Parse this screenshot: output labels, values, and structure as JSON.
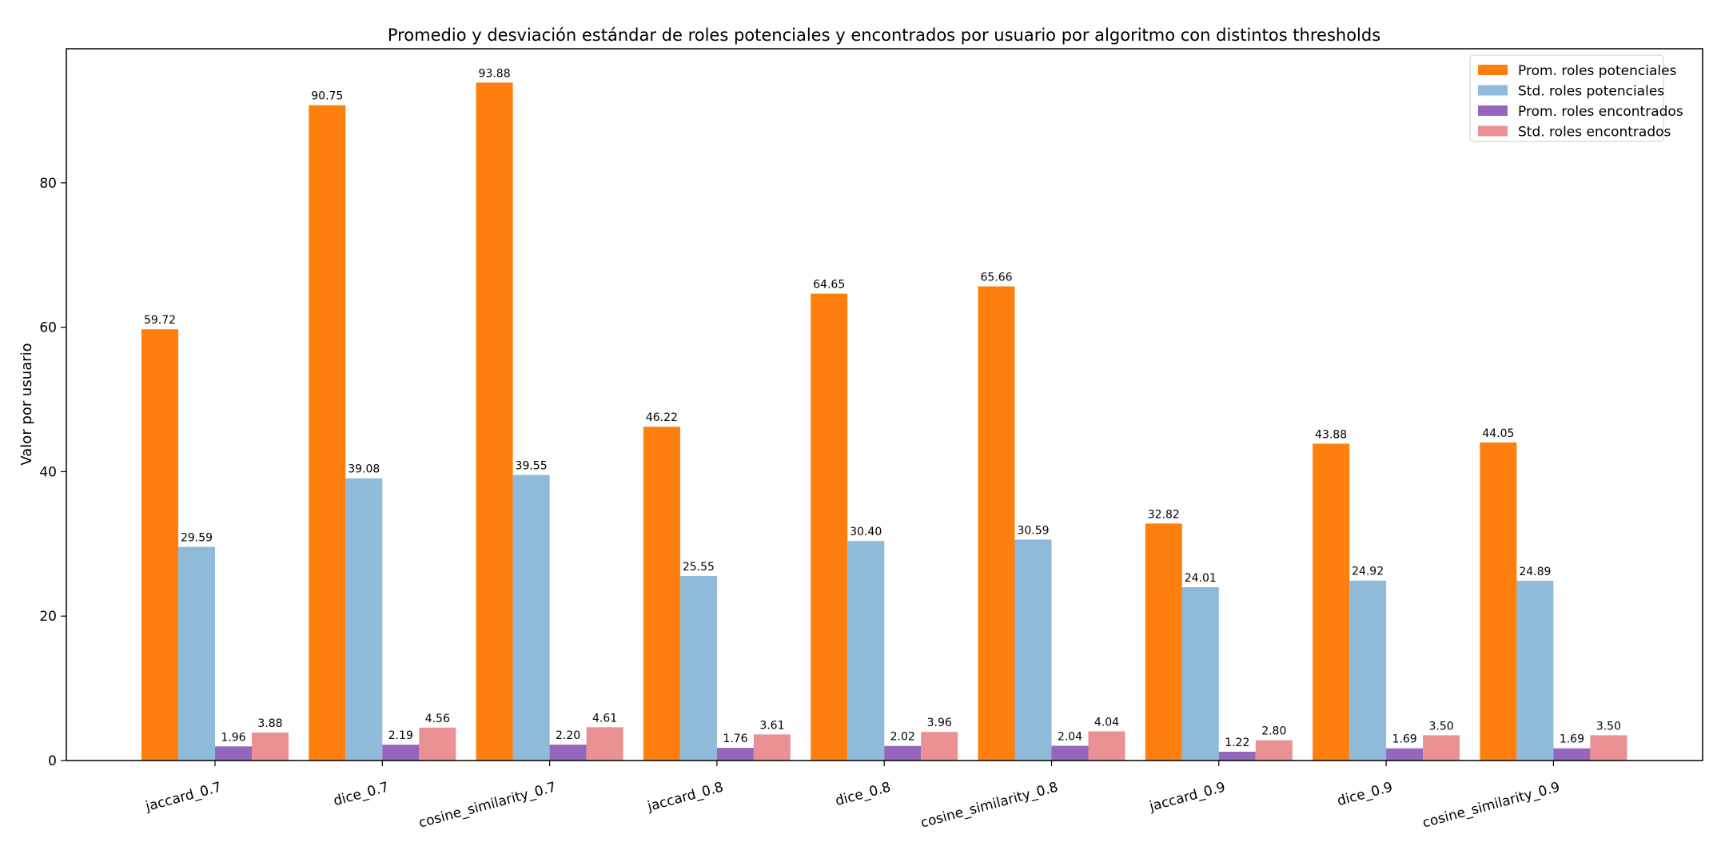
{
  "chart_data": {
    "type": "bar",
    "title": "Promedio y desviación estándar de roles potenciales y encontrados por usuario por algoritmo con distintos thresholds",
    "xlabel": "",
    "ylabel": "Valor por usuario",
    "ylim": [
      0,
      98.57
    ],
    "yticks": [
      0,
      20,
      40,
      60,
      80
    ],
    "grid": false,
    "legend_position": "top-right",
    "categories": [
      "jaccard_0.7",
      "dice_0.7",
      "cosine_similarity_0.7",
      "jaccard_0.8",
      "dice_0.8",
      "cosine_similarity_0.8",
      "jaccard_0.9",
      "dice_0.9",
      "cosine_similarity_0.9"
    ],
    "series": [
      {
        "name": "Prom. roles potenciales",
        "color": "#ff7f0e",
        "values": [
          59.72,
          90.75,
          93.88,
          46.22,
          64.65,
          65.66,
          32.82,
          43.88,
          44.05
        ],
        "labels": [
          "59.72",
          "90.75",
          "93.88",
          "46.22",
          "64.65",
          "65.66",
          "32.82",
          "43.88",
          "44.05"
        ]
      },
      {
        "name": "Std. roles potenciales",
        "color": "#8fbad9",
        "values": [
          29.59,
          39.08,
          39.55,
          25.55,
          30.4,
          30.59,
          24.01,
          24.92,
          24.89
        ],
        "labels": [
          "29.59",
          "39.08",
          "39.55",
          "25.55",
          "30.40",
          "30.59",
          "24.01",
          "24.92",
          "24.89"
        ]
      },
      {
        "name": "Prom. roles encontrados",
        "color": "#9467bd",
        "values": [
          1.96,
          2.19,
          2.2,
          1.76,
          2.02,
          2.04,
          1.22,
          1.69,
          1.69
        ],
        "labels": [
          "1.96",
          "2.19",
          "2.20",
          "1.76",
          "2.02",
          "2.04",
          "1.22",
          "1.69",
          "1.69"
        ]
      },
      {
        "name": "Std. roles encontrados",
        "color": "#ea9193",
        "values": [
          3.88,
          4.56,
          4.61,
          3.61,
          3.96,
          4.04,
          2.8,
          3.5,
          3.5
        ],
        "labels": [
          "3.88",
          "4.56",
          "4.61",
          "3.61",
          "3.96",
          "4.04",
          "2.80",
          "3.50",
          "3.50"
        ]
      }
    ]
  }
}
